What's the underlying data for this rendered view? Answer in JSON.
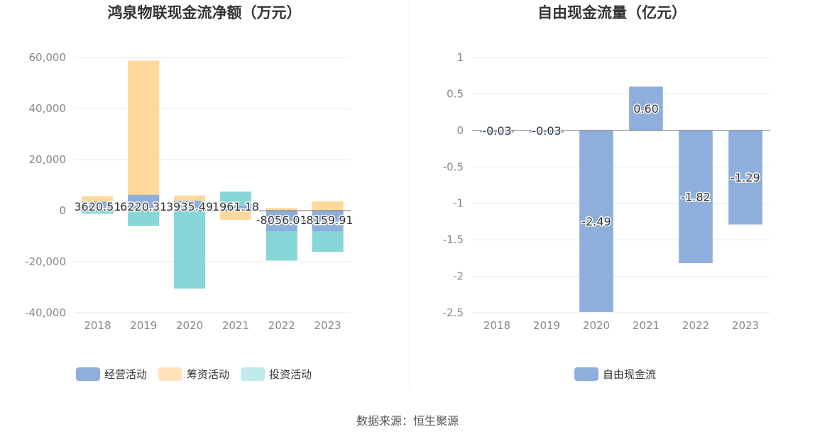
{
  "source_label": "数据来源：恒生聚源",
  "colors": {
    "operating": "#8eaedb",
    "financing": "#ffd89c",
    "investing": "#86d6d8",
    "fcf": "#8eaedb"
  },
  "chart_data": [
    {
      "type": "bar",
      "stacked": true,
      "title": "鸿泉物联现金流净额（万元）",
      "categories": [
        "2018",
        "2019",
        "2020",
        "2021",
        "2022",
        "2023"
      ],
      "ylim": [
        -40000,
        60000
      ],
      "yticks": [
        "60,000",
        "40,000",
        "20,000",
        "0",
        "-20,000",
        "-40,000"
      ],
      "ytick_values": [
        60000,
        40000,
        20000,
        0,
        -20000,
        -40000
      ],
      "grid": true,
      "legend_position": "bottom",
      "series": [
        {
          "name": "经营活动",
          "key": "operating",
          "values": [
            3620.51,
            6220.31,
            3935.49,
            1961.18,
            -8056.01,
            -8159.91
          ]
        },
        {
          "name": "筹资活动",
          "key": "financing",
          "values": [
            2000,
            52500,
            2000,
            -3600,
            1000,
            3700
          ]
        },
        {
          "name": "投资活动",
          "key": "investing",
          "values": [
            -1200,
            -6000,
            -30500,
            5500,
            -11500,
            -8000
          ]
        }
      ],
      "data_labels": [
        "3620.51",
        "6220.31",
        "3935.49",
        "1961.18",
        "-8056.01",
        "-8159.91"
      ]
    },
    {
      "type": "bar",
      "title": "自由现金流量（亿元）",
      "categories": [
        "2018",
        "2019",
        "2020",
        "2021",
        "2022",
        "2023"
      ],
      "ylim": [
        -2.5,
        1
      ],
      "yticks": [
        "1",
        "0.5",
        "0",
        "-0.5",
        "-1",
        "-1.5",
        "-2",
        "-2.5"
      ],
      "ytick_values": [
        1,
        0.5,
        0,
        -0.5,
        -1,
        -1.5,
        -2,
        -2.5
      ],
      "grid": true,
      "legend_position": "bottom",
      "series": [
        {
          "name": "自由现金流",
          "key": "fcf",
          "values": [
            -0.03,
            -0.03,
            -2.49,
            0.6,
            -1.82,
            -1.29
          ]
        }
      ],
      "data_labels": [
        "-0.03",
        "-0.03",
        "-2.49",
        "0.60",
        "-1.82",
        "-1.29"
      ]
    }
  ]
}
